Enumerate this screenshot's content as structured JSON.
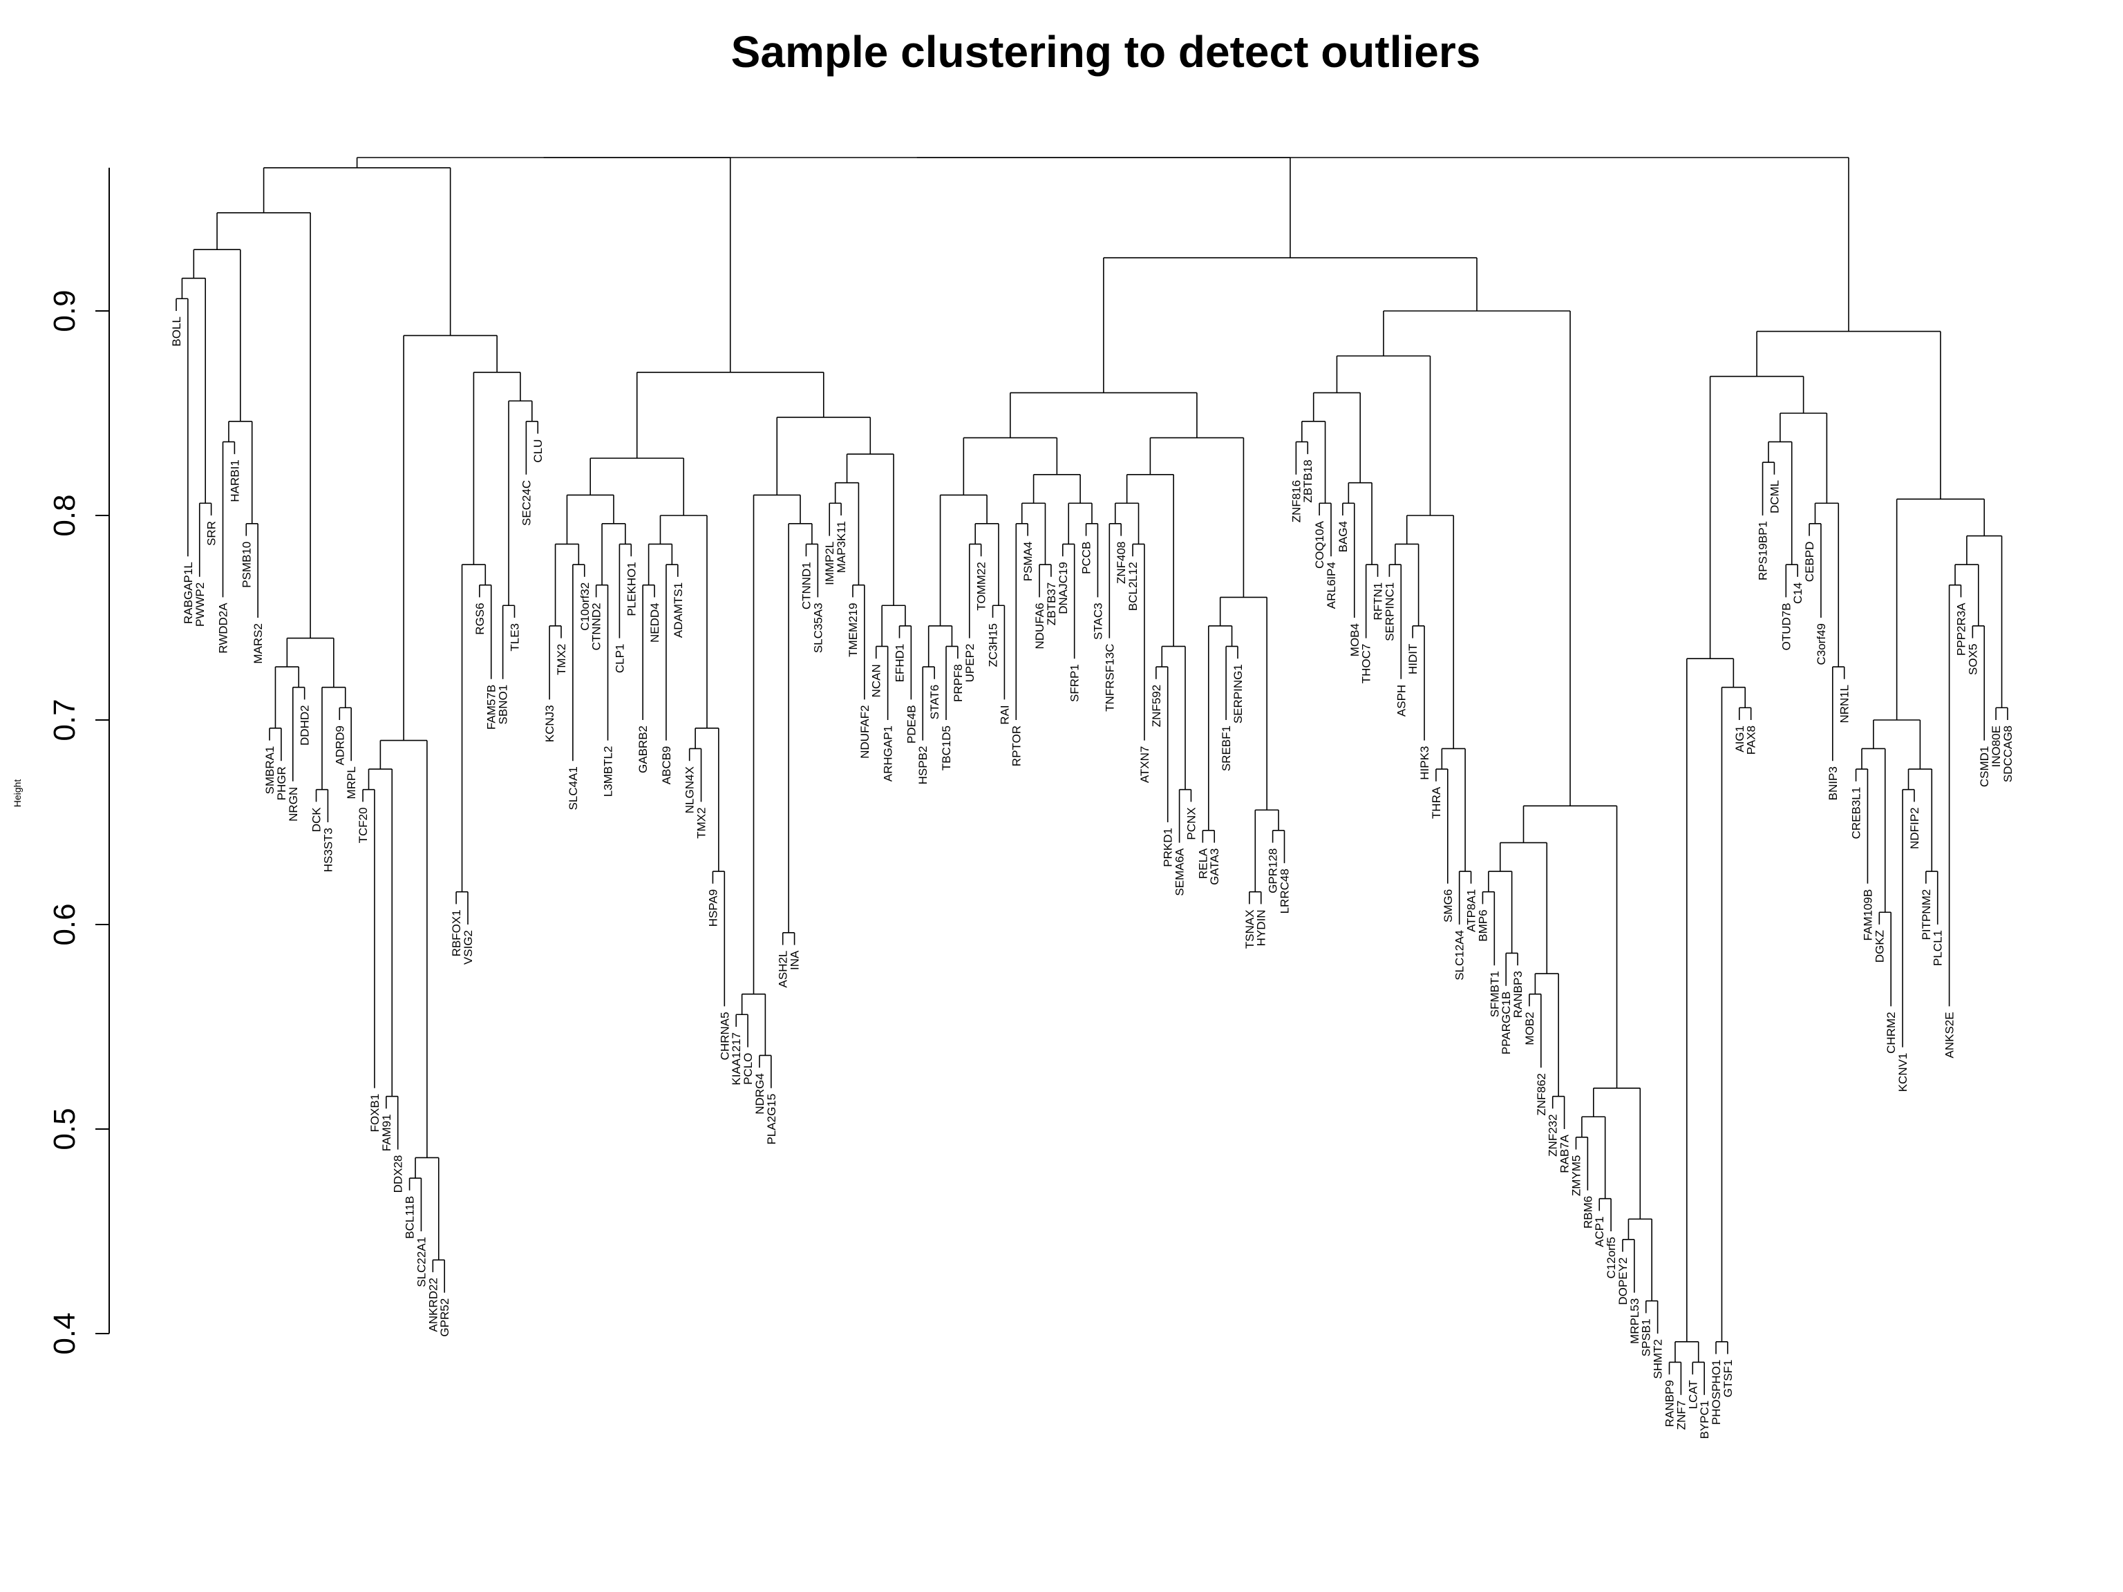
{
  "chart_data": {
    "type": "dendrogram",
    "title": "Sample clustering to detect outliers",
    "xlabel": "",
    "ylabel": "Height",
    "ylim": [
      0.4,
      0.97
    ],
    "yticks": [
      "0.4",
      "0.5",
      "0.6",
      "0.7",
      "0.8",
      "0.9"
    ],
    "grid": false,
    "legend": "none",
    "leaves": [
      {
        "label": "BOLL",
        "height": 0.9
      },
      {
        "label": "RABGAP1L",
        "height": 0.78
      },
      {
        "label": "PWWP2",
        "height": 0.77
      },
      {
        "label": "SRR",
        "height": 0.8
      },
      {
        "label": "RWDD2A",
        "height": 0.76
      },
      {
        "label": "HARBI1",
        "height": 0.83
      },
      {
        "label": "PSMB10",
        "height": 0.79
      },
      {
        "label": "MARS2",
        "height": 0.75
      },
      {
        "label": "SMBRA1",
        "height": 0.69
      },
      {
        "label": "PHGR",
        "height": 0.68
      },
      {
        "label": "NRGN",
        "height": 0.67
      },
      {
        "label": "DDHD2",
        "height": 0.71
      },
      {
        "label": "DCK",
        "height": 0.66
      },
      {
        "label": "HS3ST3",
        "height": 0.65
      },
      {
        "label": "ADRD9",
        "height": 0.7
      },
      {
        "label": "MRPL",
        "height": 0.68
      },
      {
        "label": "TCF20",
        "height": 0.66
      },
      {
        "label": "FOXB1",
        "height": 0.52
      },
      {
        "label": "FAM91",
        "height": 0.51
      },
      {
        "label": "DDX28",
        "height": 0.49
      },
      {
        "label": "BCL11B",
        "height": 0.47
      },
      {
        "label": "SLC22A1",
        "height": 0.45
      },
      {
        "label": "ANKRD22",
        "height": 0.43
      },
      {
        "label": "GPR52",
        "height": 0.42
      },
      {
        "label": "RBFOX1",
        "height": 0.61
      },
      {
        "label": "VSIG2",
        "height": 0.6
      },
      {
        "label": "RGS6",
        "height": 0.76
      },
      {
        "label": "FAM57B",
        "height": 0.72
      },
      {
        "label": "SBNO1",
        "height": 0.72
      },
      {
        "label": "TLE3",
        "height": 0.75
      },
      {
        "label": "SEC24C",
        "height": 0.82
      },
      {
        "label": "CLU",
        "height": 0.84
      },
      {
        "label": "KCNJ3",
        "height": 0.71
      },
      {
        "label": "TMX2",
        "height": 0.74
      },
      {
        "label": "SLC4A1",
        "height": 0.68
      },
      {
        "label": "C10orf32",
        "height": 0.77
      },
      {
        "label": "CTNND2",
        "height": 0.76
      },
      {
        "label": "L3MBTL2",
        "height": 0.69
      },
      {
        "label": "CLP1",
        "height": 0.74
      },
      {
        "label": "PLEKHO1",
        "height": 0.78
      },
      {
        "label": "GABRB2",
        "height": 0.7
      },
      {
        "label": "NEDD4",
        "height": 0.76
      },
      {
        "label": "ABCB9",
        "height": 0.69
      },
      {
        "label": "ADAMTS1",
        "height": 0.77
      },
      {
        "label": "NLGN4X",
        "height": 0.68
      },
      {
        "label": "TMX2",
        "height": 0.66
      },
      {
        "label": "HSPA9",
        "height": 0.62
      },
      {
        "label": "CHRNA5",
        "height": 0.56
      },
      {
        "label": "KIAA1217",
        "height": 0.55
      },
      {
        "label": "PCLO",
        "height": 0.54
      },
      {
        "label": "NDRG4",
        "height": 0.53
      },
      {
        "label": "PLA2G15",
        "height": 0.52
      },
      {
        "label": "ASH2L",
        "height": 0.59
      },
      {
        "label": "INA",
        "height": 0.59
      },
      {
        "label": "CTNND1",
        "height": 0.78
      },
      {
        "label": "SLC35A3",
        "height": 0.76
      },
      {
        "label": "IMMP2L",
        "height": 0.79
      },
      {
        "label": "MAP3K11",
        "height": 0.8
      },
      {
        "label": "TMEM219",
        "height": 0.76
      },
      {
        "label": "NDUFAF2",
        "height": 0.71
      },
      {
        "label": "NCAN",
        "height": 0.73
      },
      {
        "label": "ARHGAP1",
        "height": 0.7
      },
      {
        "label": "EFHD1",
        "height": 0.74
      },
      {
        "label": "PDE4B",
        "height": 0.71
      },
      {
        "label": "HSPB2",
        "height": 0.69
      },
      {
        "label": "STAT6",
        "height": 0.72
      },
      {
        "label": "TBC1D5",
        "height": 0.7
      },
      {
        "label": "PRPF8",
        "height": 0.73
      },
      {
        "label": "UPEP2",
        "height": 0.74
      },
      {
        "label": "TOMM22",
        "height": 0.78
      },
      {
        "label": "ZC3H15",
        "height": 0.75
      },
      {
        "label": "RAI",
        "height": 0.71
      },
      {
        "label": "RPTOR",
        "height": 0.7
      },
      {
        "label": "PSMA4",
        "height": 0.79
      },
      {
        "label": "NDUFA6",
        "height": 0.76
      },
      {
        "label": "ZBTB37",
        "height": 0.77
      },
      {
        "label": "DNAJC19",
        "height": 0.78
      },
      {
        "label": "SFRP1",
        "height": 0.73
      },
      {
        "label": "PCCB",
        "height": 0.79
      },
      {
        "label": "STAC3",
        "height": 0.76
      },
      {
        "label": "TNFRSF13C",
        "height": 0.74
      },
      {
        "label": "ZNF408",
        "height": 0.79
      },
      {
        "label": "BCL2L12",
        "height": 0.78
      },
      {
        "label": "ATXN7",
        "height": 0.69
      },
      {
        "label": "ZNF592",
        "height": 0.72
      },
      {
        "label": "PRKD1",
        "height": 0.65
      },
      {
        "label": "SEMA6A",
        "height": 0.64
      },
      {
        "label": "PCNX",
        "height": 0.66
      },
      {
        "label": "RELA",
        "height": 0.64
      },
      {
        "label": "GATA3",
        "height": 0.64
      },
      {
        "label": "SREBF1",
        "height": 0.7
      },
      {
        "label": "SERPING1",
        "height": 0.73
      },
      {
        "label": "TSNAX",
        "height": 0.61
      },
      {
        "label": "HYDIN",
        "height": 0.61
      },
      {
        "label": "GPR128",
        "height": 0.64
      },
      {
        "label": "LRRC48",
        "height": 0.63
      },
      {
        "label": "ZNF816",
        "height": 0.82
      },
      {
        "label": "ZBTB18",
        "height": 0.83
      },
      {
        "label": "COQ10A",
        "height": 0.8
      },
      {
        "label": "ARL6IP4",
        "height": 0.78
      },
      {
        "label": "BAG4",
        "height": 0.8
      },
      {
        "label": "MOB4",
        "height": 0.75
      },
      {
        "label": "THOC7",
        "height": 0.74
      },
      {
        "label": "RFTN1",
        "height": 0.77
      },
      {
        "label": "SERPINC1",
        "height": 0.77
      },
      {
        "label": "ASPH",
        "height": 0.72
      },
      {
        "label": "HIDIT",
        "height": 0.74
      },
      {
        "label": "HIPK3",
        "height": 0.69
      },
      {
        "label": "THRA",
        "height": 0.67
      },
      {
        "label": "SMG6",
        "height": 0.62
      },
      {
        "label": "SLC12A4",
        "height": 0.6
      },
      {
        "label": "ATP8A1",
        "height": 0.62
      },
      {
        "label": "BMP6",
        "height": 0.61
      },
      {
        "label": "SFMBT1",
        "height": 0.58
      },
      {
        "label": "PPARGC1B",
        "height": 0.57
      },
      {
        "label": "RANBP3",
        "height": 0.58
      },
      {
        "label": "MOB2",
        "height": 0.56
      },
      {
        "label": "ZNF862",
        "height": 0.53
      },
      {
        "label": "ZNF232",
        "height": 0.51
      },
      {
        "label": "RAB7A",
        "height": 0.5
      },
      {
        "label": "ZMYM5",
        "height": 0.49
      },
      {
        "label": "RBM6",
        "height": 0.47
      },
      {
        "label": "ACP1",
        "height": 0.46
      },
      {
        "label": "C12orf5",
        "height": 0.45
      },
      {
        "label": "DOPEY2",
        "height": 0.44
      },
      {
        "label": "MRPL53",
        "height": 0.42
      },
      {
        "label": "SPSB1",
        "height": 0.41
      },
      {
        "label": "SHMT2",
        "height": 0.4
      },
      {
        "label": "RANBP9",
        "height": 0.38
      },
      {
        "label": "ZNF7",
        "height": 0.37
      },
      {
        "label": "LCAT",
        "height": 0.38
      },
      {
        "label": "BYPC1",
        "height": 0.37
      },
      {
        "label": "PHOSPHO1",
        "height": 0.39
      },
      {
        "label": "GTSF1",
        "height": 0.39
      },
      {
        "label": "AIG1",
        "height": 0.7
      },
      {
        "label": "PAX8",
        "height": 0.7
      },
      {
        "label": "RPS19BP1",
        "height": 0.8
      },
      {
        "label": "DCML",
        "height": 0.82
      },
      {
        "label": "OTUD7B",
        "height": 0.76
      },
      {
        "label": "C14",
        "height": 0.77
      },
      {
        "label": "CEBPD",
        "height": 0.79
      },
      {
        "label": "C3orf49",
        "height": 0.75
      },
      {
        "label": "BNIP3",
        "height": 0.68
      },
      {
        "label": "NRN1L",
        "height": 0.72
      },
      {
        "label": "CREB3L1",
        "height": 0.67
      },
      {
        "label": "FAM109B",
        "height": 0.62
      },
      {
        "label": "DGKZ",
        "height": 0.6
      },
      {
        "label": "CHRM2",
        "height": 0.56
      },
      {
        "label": "KCNV1",
        "height": 0.54
      },
      {
        "label": "NDFIP2",
        "height": 0.66
      },
      {
        "label": "PITPNM2",
        "height": 0.62
      },
      {
        "label": "PLCL1",
        "height": 0.6
      },
      {
        "label": "ANKS2E",
        "height": 0.56
      },
      {
        "label": "PPP2R3A",
        "height": 0.76
      },
      {
        "label": "SOX5",
        "height": 0.74
      },
      {
        "label": "CSMD1",
        "height": 0.69
      },
      {
        "label": "INO80E",
        "height": 0.7
      },
      {
        "label": "SDCCAG8",
        "height": 0.7
      }
    ]
  }
}
